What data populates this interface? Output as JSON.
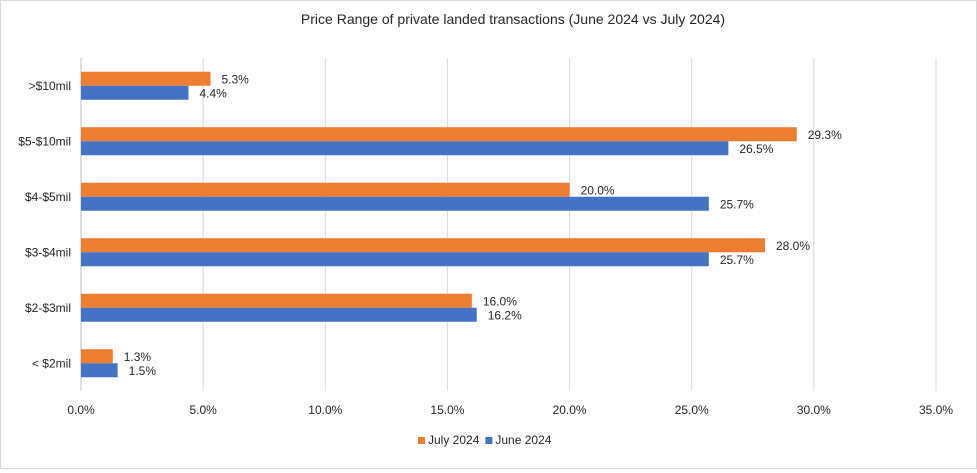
{
  "chart_data": {
    "type": "bar",
    "orientation": "horizontal",
    "title": "Price Range of private landed transactions (June 2024 vs July 2024)",
    "categories": [
      ">$10mil",
      "$5-$10mil",
      "$4-$5mil",
      "$3-$4mil",
      "$2-$3mil",
      "< $2mil"
    ],
    "series": [
      {
        "name": "July 2024",
        "color": "#ed7d31",
        "values": [
          5.3,
          29.3,
          20.0,
          28.0,
          16.0,
          1.3
        ],
        "labels": [
          "5.3%",
          "29.3%",
          "20.0%",
          "28.0%",
          "16.0%",
          "1.3%"
        ]
      },
      {
        "name": "June 2024",
        "color": "#4472c4",
        "values": [
          4.4,
          26.5,
          25.7,
          25.7,
          16.2,
          1.5
        ],
        "labels": [
          "4.4%",
          "26.5%",
          "25.7%",
          "25.7%",
          "16.2%",
          "1.5%"
        ]
      }
    ],
    "xlim": [
      0,
      35
    ],
    "x_ticks": [
      "0.0%",
      "5.0%",
      "10.0%",
      "15.0%",
      "20.0%",
      "25.0%",
      "30.0%",
      "35.0%"
    ],
    "grid": true,
    "legend_position": "bottom"
  }
}
